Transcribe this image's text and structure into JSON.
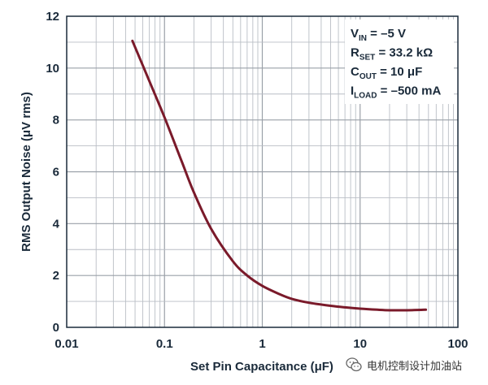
{
  "chart_data": {
    "type": "line",
    "xscale": "log",
    "xlim": [
      0.01,
      100
    ],
    "ylim": [
      0,
      12
    ],
    "grid": true,
    "xlabel": "Set Pin Capacitance (μF)",
    "ylabel": "RMS Output Noise (μV rms)",
    "xticks": [
      "0.01",
      "0.1",
      "1",
      "10",
      "100"
    ],
    "yticks": [
      "0",
      "2",
      "4",
      "6",
      "8",
      "10",
      "12"
    ],
    "series": [
      {
        "color": "#7a1a2a",
        "x": [
          0.047,
          0.07,
          0.1,
          0.15,
          0.2,
          0.3,
          0.5,
          0.7,
          1,
          1.5,
          2,
          3,
          5,
          7,
          10,
          15,
          20,
          30,
          47
        ],
        "y": [
          11.05,
          9.5,
          8.1,
          6.4,
          5.2,
          3.8,
          2.55,
          2.0,
          1.6,
          1.28,
          1.1,
          0.95,
          0.83,
          0.77,
          0.72,
          0.68,
          0.66,
          0.66,
          0.68
        ]
      }
    ],
    "annotation": [
      {
        "main": "V",
        "sub": "IN",
        "rest": " = –5 V"
      },
      {
        "main": "R",
        "sub": "SET",
        "rest": " = 33.2 kΩ"
      },
      {
        "main": "C",
        "sub": "OUT",
        "rest": " = 10 μF"
      },
      {
        "main": "I",
        "sub": "LOAD",
        "rest": " = –500 mA"
      }
    ]
  },
  "watermark": {
    "text": "电机控制设计加油站",
    "icon": "wechat-icon"
  }
}
